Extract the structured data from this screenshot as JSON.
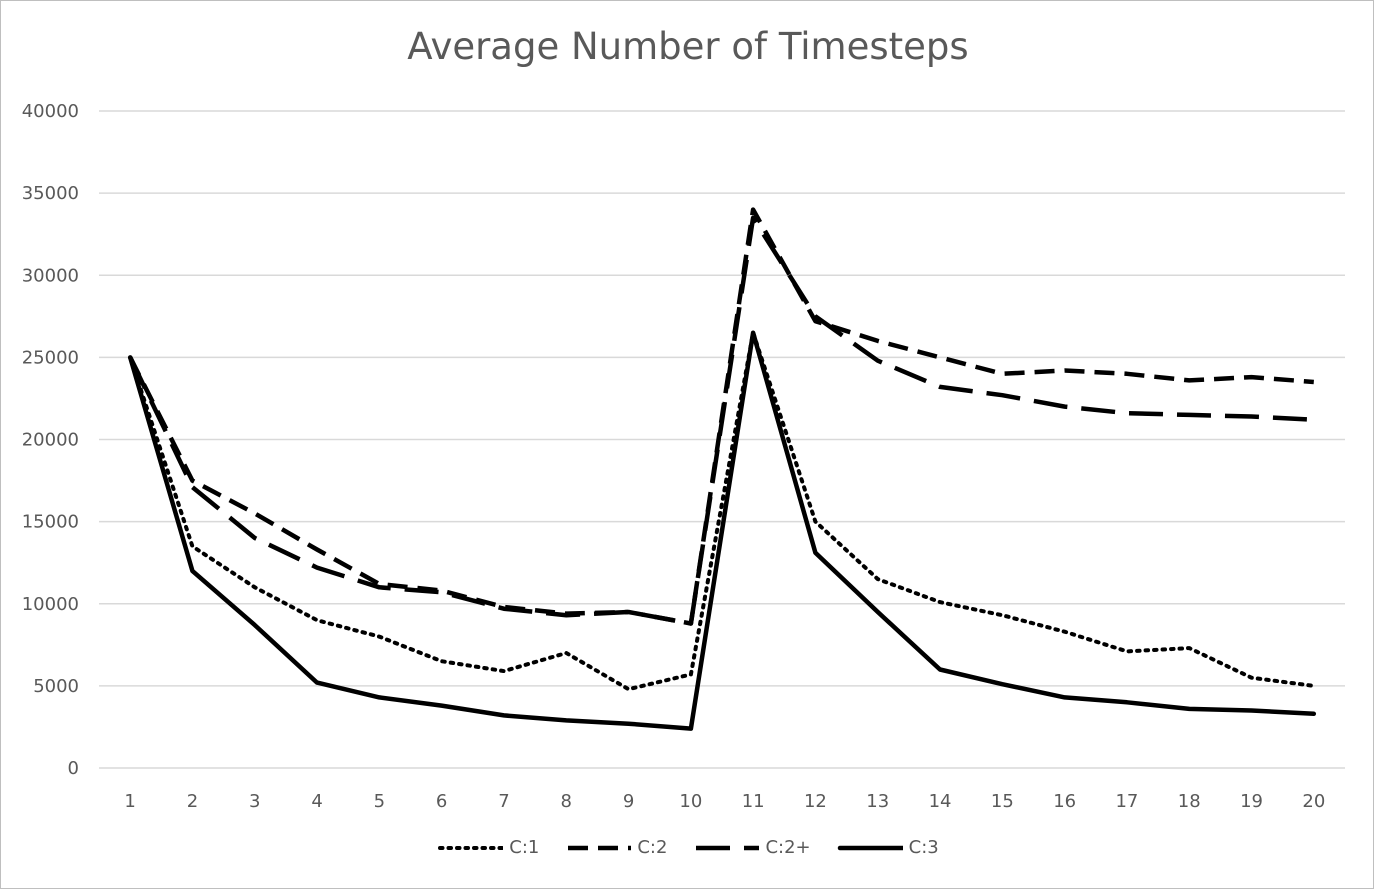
{
  "chart_data": {
    "type": "line",
    "title": "Average Number of Timesteps",
    "xlabel": "",
    "ylabel": "",
    "ylim": [
      0,
      40000
    ],
    "yticks": [
      0,
      5000,
      10000,
      15000,
      20000,
      25000,
      30000,
      35000,
      40000
    ],
    "categories": [
      "1",
      "2",
      "3",
      "4",
      "5",
      "6",
      "7",
      "8",
      "9",
      "10",
      "11",
      "12",
      "13",
      "14",
      "15",
      "16",
      "17",
      "18",
      "19",
      "20"
    ],
    "grid": "horizontal",
    "legend_position": "bottom",
    "series": [
      {
        "name": "C:1",
        "style": "dotted",
        "values": [
          25000,
          13500,
          11000,
          9000,
          8000,
          6500,
          5900,
          7000,
          4800,
          5700,
          26500,
          15000,
          11500,
          10100,
          9300,
          8300,
          7100,
          7300,
          5500,
          5000
        ]
      },
      {
        "name": "C:2",
        "style": "dashed",
        "values": [
          25000,
          17500,
          15500,
          13300,
          11200,
          10800,
          9800,
          9400,
          9500,
          8800,
          34000,
          27200,
          26000,
          25000,
          24000,
          24200,
          24000,
          23600,
          23800,
          23500
        ]
      },
      {
        "name": "C:2+",
        "style": "long-dashed",
        "values": [
          25000,
          17100,
          14000,
          12200,
          11000,
          10700,
          9700,
          9300,
          9500,
          8800,
          33500,
          27500,
          24800,
          23200,
          22700,
          22000,
          21600,
          21500,
          21400,
          21200
        ]
      },
      {
        "name": "C:3",
        "style": "solid",
        "values": [
          25000,
          12000,
          8700,
          5200,
          4300,
          3800,
          3200,
          2900,
          2700,
          2400,
          26500,
          13100,
          9500,
          6000,
          5100,
          4300,
          4000,
          3600,
          3500,
          3300
        ]
      }
    ],
    "line_color": "#000000",
    "grid_color": "#d9d9d9",
    "text_color": "#595959"
  }
}
